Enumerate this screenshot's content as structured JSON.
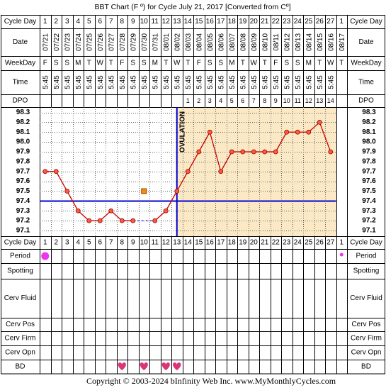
{
  "title": "BBT Chart (F º) for Cycle July 21, 2017  [Converted from Cº]",
  "copyright": "Copyright © 2003-2024 bInfinity Web Inc.    www.MyMonthlyCycles.com",
  "ovulation_label": "OVULATION",
  "row_labels": {
    "cycle_day": "Cycle Day",
    "date": "Date",
    "weekday": "WeekDay",
    "time": "Time",
    "dpo": "DPO",
    "period": "Period",
    "spotting": "Spotting",
    "cerv_fluid": "Cerv Fluid",
    "cerv_pos": "Cerv Pos",
    "cerv_firm": "Cerv Firm",
    "cerv_opn": "Cerv Opn",
    "bd": "BD"
  },
  "colors": {
    "grid": "#000000",
    "post_ovulation_bg": "#fbe9c6",
    "line": "#cc0000",
    "point_fill": "#ff5a3a",
    "coverline": "#0000cc",
    "ovulation_line": "#0000cc",
    "period": "#ee33ee",
    "bd_heart": "#dd3377",
    "excluded_point": "#ff8800"
  },
  "chart_data": {
    "type": "line",
    "cycle_days": [
      "1",
      "2",
      "3",
      "4",
      "5",
      "6",
      "7",
      "8",
      "9",
      "10",
      "11",
      "12",
      "13",
      "14",
      "15",
      "16",
      "17",
      "18",
      "19",
      "20",
      "21",
      "22",
      "23",
      "24",
      "25",
      "26",
      "27",
      "1"
    ],
    "dates": [
      "07/21",
      "07/22",
      "07/23",
      "07/24",
      "07/25",
      "07/26",
      "07/27",
      "07/28",
      "07/29",
      "07/30",
      "07/31",
      "08/01",
      "08/02",
      "08/03",
      "08/04",
      "08/05",
      "08/06",
      "08/07",
      "08/08",
      "08/09",
      "08/10",
      "08/11",
      "08/12",
      "08/13",
      "08/14",
      "08/15",
      "08/16",
      "08/17"
    ],
    "weekdays": [
      "F",
      "S",
      "S",
      "M",
      "T",
      "W",
      "T",
      "F",
      "S",
      "S",
      "M",
      "T",
      "W",
      "T",
      "F",
      "S",
      "S",
      "M",
      "T",
      "W",
      "T",
      "F",
      "S",
      "S",
      "M",
      "T",
      "W",
      "T"
    ],
    "times": [
      "5:45",
      "5:45",
      "5:45",
      "5:45",
      "5:45",
      "5:45",
      "5:45",
      "5:45",
      "5:45",
      "5:45",
      "5:45",
      "5:45",
      "5:45",
      "5:45",
      "5:45",
      "5:45",
      "5:45",
      "5:45",
      "5:45",
      "5:45",
      "5:45",
      "5:45",
      "5:45",
      "5:45",
      "5:45",
      "5:45",
      "5:45",
      ""
    ],
    "dpo": [
      "",
      "",
      "",
      "",
      "",
      "",
      "",
      "",
      "",
      "",
      "",
      "",
      "",
      "1",
      "2",
      "3",
      "4",
      "5",
      "6",
      "7",
      "8",
      "9",
      "10",
      "11",
      "12",
      "13",
      "14",
      ""
    ],
    "temperatures": [
      97.7,
      97.7,
      97.5,
      97.3,
      97.2,
      97.2,
      97.3,
      97.2,
      97.2,
      null,
      97.2,
      97.3,
      97.5,
      97.7,
      97.9,
      98.1,
      97.7,
      97.9,
      97.9,
      97.9,
      97.9,
      97.9,
      98.1,
      98.1,
      98.1,
      98.2,
      97.9,
      null
    ],
    "excluded": [
      {
        "day_index": 9,
        "value": 97.5
      }
    ],
    "dashed_gap": {
      "from_index": 8,
      "to_index": 10
    },
    "y_ticks": [
      98.3,
      98.2,
      98.1,
      98.0,
      97.9,
      97.8,
      97.7,
      97.6,
      97.5,
      97.4,
      97.3,
      97.2,
      97.1
    ],
    "ylim": [
      97.1,
      98.3
    ],
    "coverline": 97.4,
    "ovulation_after_index": 12,
    "period_days": [
      0
    ],
    "period_small_days": [
      27
    ],
    "bd_days": [
      7,
      9,
      11,
      12
    ]
  }
}
